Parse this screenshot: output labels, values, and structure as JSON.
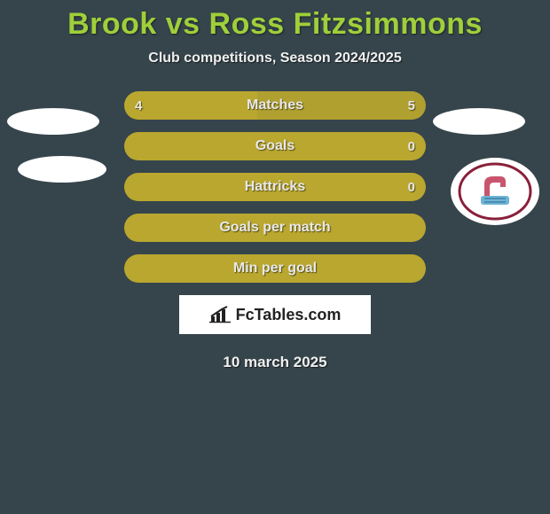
{
  "title": "Brook vs Ross Fitzsimmons",
  "subtitle": "Club competitions, Season 2024/2025",
  "colors": {
    "background": "#36454c",
    "title": "#9fcf3a",
    "bar_left": "#b9a72f",
    "bar_right": "#b0a030",
    "bar_single": "#b9a72f",
    "text": "#e8e8e8"
  },
  "bars": [
    {
      "label": "Matches",
      "left_value": "4",
      "right_value": "5",
      "left_pct": 44,
      "right_pct": 56,
      "split": true
    },
    {
      "label": "Goals",
      "left_value": "",
      "right_value": "0",
      "left_pct": 100,
      "right_pct": 0,
      "split": false
    },
    {
      "label": "Hattricks",
      "left_value": "",
      "right_value": "0",
      "left_pct": 100,
      "right_pct": 0,
      "split": false
    },
    {
      "label": "Goals per match",
      "left_value": "",
      "right_value": "",
      "left_pct": 100,
      "right_pct": 0,
      "split": false
    },
    {
      "label": "Min per goal",
      "left_value": "",
      "right_value": "",
      "left_pct": 100,
      "right_pct": 0,
      "split": false
    }
  ],
  "brand": {
    "name": "FcTables.com"
  },
  "date": "10 march 2025",
  "badge": {
    "name": "scunthorpe-united-crest",
    "fist_color": "#c9546e",
    "cuff_color": "#6fb3d6",
    "ring_color": "#8a1f3a",
    "text": ""
  }
}
